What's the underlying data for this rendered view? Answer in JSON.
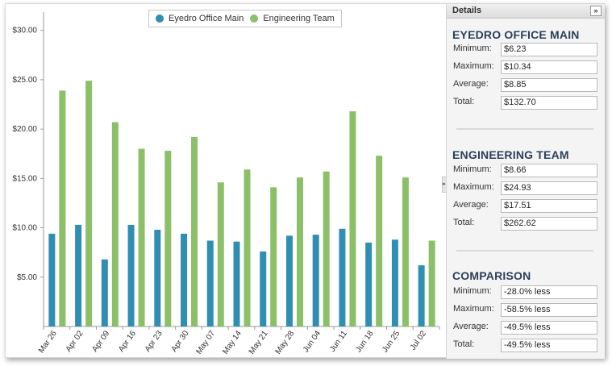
{
  "legend": [
    {
      "label": "Eyedro Office Main",
      "color": "#2f8fb2"
    },
    {
      "label": "Engineering Team",
      "color": "#8cc068"
    }
  ],
  "chart_data": {
    "type": "bar",
    "categories": [
      "Mar 26",
      "Apr 02",
      "Apr 09",
      "Apr 16",
      "Apr 23",
      "Apr 30",
      "May 07",
      "May 14",
      "May 21",
      "May 28",
      "Jun 04",
      "Jun 11",
      "Jun 18",
      "Jun 25",
      "Jul 02"
    ],
    "series": [
      {
        "name": "Eyedro Office Main",
        "color": "#2f8fb2",
        "values": [
          9.4,
          10.3,
          6.8,
          10.3,
          9.8,
          9.4,
          8.7,
          8.6,
          7.6,
          9.2,
          9.3,
          9.9,
          8.5,
          8.8,
          6.2
        ]
      },
      {
        "name": "Engineering Team",
        "color": "#8cc068",
        "values": [
          23.9,
          24.9,
          20.7,
          18.0,
          17.8,
          19.2,
          14.6,
          15.9,
          14.1,
          15.1,
          15.7,
          21.8,
          17.3,
          15.1,
          8.7
        ]
      }
    ],
    "y_ticks": [
      "$5.00",
      "$10.00",
      "$15.00",
      "$20.00",
      "$25.00",
      "$30.00"
    ],
    "y_tick_values": [
      5,
      10,
      15,
      20,
      25,
      30
    ],
    "ylim": [
      0,
      31.2
    ],
    "grid": false,
    "legend_position": "top-center"
  },
  "details": {
    "header": "Details",
    "toggle": "»",
    "sections": [
      {
        "title": "EYEDRO OFFICE MAIN",
        "rows": [
          {
            "label": "Minimum:",
            "value": "$6.23"
          },
          {
            "label": "Maximum:",
            "value": "$10.34"
          },
          {
            "label": "Average:",
            "value": "$8.85"
          },
          {
            "label": "Total:",
            "value": "$132.70"
          }
        ]
      },
      {
        "title": "ENGINEERING TEAM",
        "rows": [
          {
            "label": "Minimum:",
            "value": "$8.66"
          },
          {
            "label": "Maximum:",
            "value": "$24.93"
          },
          {
            "label": "Average:",
            "value": "$17.51"
          },
          {
            "label": "Total:",
            "value": "$262.62"
          }
        ]
      },
      {
        "title": "COMPARISON",
        "rows": [
          {
            "label": "Minimum:",
            "value": "-28.0% less"
          },
          {
            "label": "Maximum:",
            "value": "-58.5% less"
          },
          {
            "label": "Average:",
            "value": "-49.5% less"
          },
          {
            "label": "Total:",
            "value": "-49.5% less"
          }
        ]
      }
    ]
  }
}
